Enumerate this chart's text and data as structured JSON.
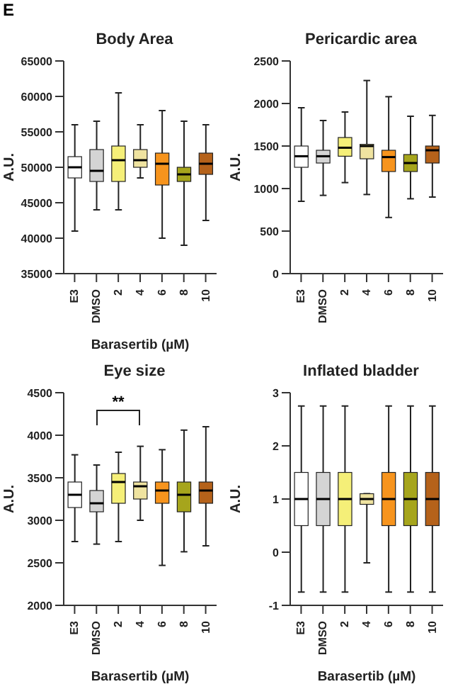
{
  "chart_data": [
    {
      "type": "box",
      "title": "Body Area",
      "xlabel": "Barasertib (µM)",
      "ylabel": "A.U.",
      "annotations": [
        "E"
      ],
      "categories": [
        "E3",
        "DMSO",
        "2",
        "4",
        "6",
        "8",
        "10"
      ],
      "colors": [
        "#ffffff",
        "#d4d4d4",
        "#f5ef78",
        "#efe3a0",
        "#f7941d",
        "#a6a51c",
        "#b5621a"
      ],
      "ylim": [
        35000,
        65000
      ],
      "yticks": [
        35000,
        40000,
        45000,
        50000,
        55000,
        60000,
        65000
      ],
      "boxes": [
        {
          "low": 41000,
          "q1": 48500,
          "median": 50000,
          "q3": 51500,
          "high": 56000
        },
        {
          "low": 44000,
          "q1": 48000,
          "median": 49500,
          "q3": 52500,
          "high": 56500
        },
        {
          "low": 44000,
          "q1": 48000,
          "median": 51000,
          "q3": 53000,
          "high": 60500
        },
        {
          "low": 48500,
          "q1": 50000,
          "median": 51000,
          "q3": 52500,
          "high": 56000
        },
        {
          "low": 40000,
          "q1": 47500,
          "median": 50500,
          "q3": 52000,
          "high": 58000
        },
        {
          "low": 39000,
          "q1": 48000,
          "median": 49000,
          "q3": 50000,
          "high": 56500
        },
        {
          "low": 42500,
          "q1": 49000,
          "median": 50500,
          "q3": 52000,
          "high": 56000
        }
      ]
    },
    {
      "type": "box",
      "title": "Pericardic area",
      "ylabel": "A.U.",
      "categories": [
        "E3",
        "DMSO",
        "2",
        "4",
        "6",
        "8",
        "10"
      ],
      "colors": [
        "#ffffff",
        "#d4d4d4",
        "#f5ef78",
        "#efe3a0",
        "#f7941d",
        "#a6a51c",
        "#b5621a"
      ],
      "ylim": [
        0,
        2500
      ],
      "yticks": [
        0,
        500,
        1000,
        1500,
        2000,
        2500
      ],
      "boxes": [
        {
          "low": 850,
          "q1": 1250,
          "median": 1380,
          "q3": 1500,
          "high": 1950
        },
        {
          "low": 920,
          "q1": 1300,
          "median": 1380,
          "q3": 1450,
          "high": 1800
        },
        {
          "low": 1070,
          "q1": 1380,
          "median": 1480,
          "q3": 1600,
          "high": 1900
        },
        {
          "low": 930,
          "q1": 1350,
          "median": 1500,
          "q3": 1520,
          "high": 2270
        },
        {
          "low": 660,
          "q1": 1200,
          "median": 1370,
          "q3": 1450,
          "high": 2080
        },
        {
          "low": 880,
          "q1": 1200,
          "median": 1300,
          "q3": 1400,
          "high": 1850
        },
        {
          "low": 900,
          "q1": 1300,
          "median": 1450,
          "q3": 1500,
          "high": 1860
        }
      ]
    },
    {
      "type": "box",
      "title": "Eye size",
      "xlabel": "Barasertib (µM)",
      "ylabel": "A.U.",
      "annotations": [
        "**"
      ],
      "categories": [
        "E3",
        "DMSO",
        "2",
        "4",
        "6",
        "8",
        "10"
      ],
      "colors": [
        "#ffffff",
        "#d4d4d4",
        "#f5ef78",
        "#efe3a0",
        "#f7941d",
        "#a6a51c",
        "#b5621a"
      ],
      "ylim": [
        2000,
        4500
      ],
      "yticks": [
        2000,
        2500,
        3000,
        3500,
        4000,
        4500
      ],
      "boxes": [
        {
          "low": 2750,
          "q1": 3150,
          "median": 3300,
          "q3": 3450,
          "high": 3770
        },
        {
          "low": 2720,
          "q1": 3100,
          "median": 3200,
          "q3": 3350,
          "high": 3650
        },
        {
          "low": 2750,
          "q1": 3200,
          "median": 3450,
          "q3": 3550,
          "high": 3800
        },
        {
          "low": 3000,
          "q1": 3250,
          "median": 3400,
          "q3": 3450,
          "high": 3870
        },
        {
          "low": 2470,
          "q1": 3200,
          "median": 3350,
          "q3": 3450,
          "high": 3830
        },
        {
          "low": 2630,
          "q1": 3100,
          "median": 3300,
          "q3": 3450,
          "high": 4060
        },
        {
          "low": 2700,
          "q1": 3200,
          "median": 3350,
          "q3": 3450,
          "high": 4100
        }
      ]
    },
    {
      "type": "box",
      "title": "Inflated bladder",
      "xlabel": "Barasertib (µM)",
      "ylabel": "A.U.",
      "categories": [
        "E3",
        "DMSO",
        "2",
        "4",
        "6",
        "8",
        "10"
      ],
      "colors": [
        "#ffffff",
        "#d4d4d4",
        "#f5ef78",
        "#efe3a0",
        "#f7941d",
        "#a6a51c",
        "#b5621a"
      ],
      "ylim": [
        -1,
        3
      ],
      "yticks": [
        -1,
        0,
        1,
        2,
        3
      ],
      "boxes": [
        {
          "low": -0.75,
          "q1": 0.5,
          "median": 1,
          "q3": 1.5,
          "high": 2.75
        },
        {
          "low": -0.75,
          "q1": 0.5,
          "median": 1,
          "q3": 1.5,
          "high": 2.75
        },
        {
          "low": -0.75,
          "q1": 0.5,
          "median": 1,
          "q3": 1.5,
          "high": 2.75
        },
        {
          "low": -0.2,
          "q1": 0.9,
          "median": 1,
          "q3": 1.1,
          "high": 1.1
        },
        {
          "low": -0.75,
          "q1": 0.5,
          "median": 1,
          "q3": 1.5,
          "high": 2.75
        },
        {
          "low": -0.75,
          "q1": 0.5,
          "median": 1,
          "q3": 1.5,
          "high": 2.75
        },
        {
          "low": -0.75,
          "q1": 0.5,
          "median": 1,
          "q3": 1.5,
          "high": 2.75
        }
      ]
    }
  ]
}
